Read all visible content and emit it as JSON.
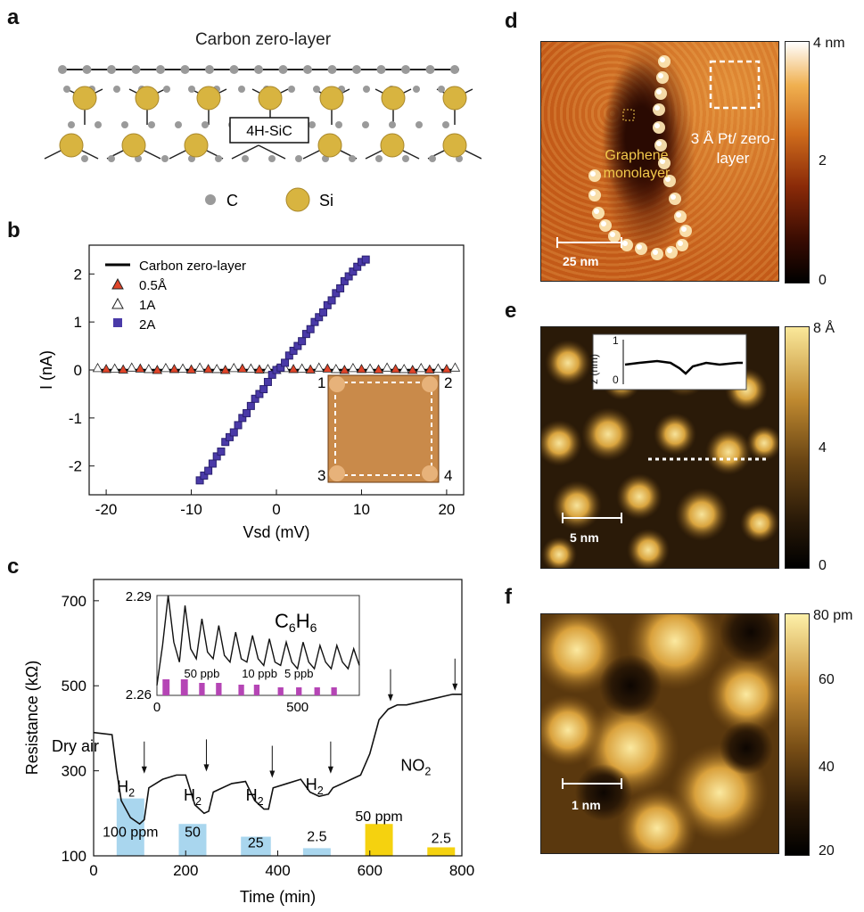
{
  "panels": {
    "a": {
      "letter": "a",
      "title": "Carbon zero-layer",
      "substrate": "4H-SiC",
      "legend": [
        "C",
        "Si"
      ]
    },
    "b": {
      "letter": "b"
    },
    "c": {
      "letter": "c"
    },
    "d": {
      "letter": "d",
      "label_graphene": "Graphene monolayer",
      "label_pt": "3 Å Pt/ zero-layer",
      "scalebar": "25 nm",
      "colorbar_ticks": [
        "4 nm",
        "2",
        "0"
      ]
    },
    "e": {
      "letter": "e",
      "scalebar": "5 nm",
      "colorbar_ticks": [
        "8 Å",
        "4",
        "0"
      ],
      "inset_ylabel": "z (nm)",
      "inset_yticks": [
        "1",
        "0"
      ]
    },
    "f": {
      "letter": "f",
      "scalebar": "1 nm",
      "colorbar_ticks": [
        "80 pm",
        "60",
        "40",
        "20"
      ]
    }
  },
  "chart_data": [
    {
      "panel": "b",
      "type": "scatter",
      "xlabel": "Vsd (mV)",
      "ylabel": "I (nA)",
      "xlim": [
        -22,
        22
      ],
      "ylim": [
        -2.6,
        2.6
      ],
      "xticks": [
        "-20",
        "-10",
        "0",
        "10",
        "20"
      ],
      "yticks": [
        "2",
        "1",
        "0",
        "-1",
        "-2"
      ],
      "legend_position": "top-left",
      "series": [
        {
          "name": "Carbon zero-layer",
          "marker": "line",
          "color": "#000000",
          "x": [
            -21,
            21
          ],
          "y": [
            0,
            0
          ]
        },
        {
          "name": "0.5Å",
          "marker": "triangle",
          "color": "#e0452a",
          "x": [
            -20,
            -18,
            -16,
            -14,
            -12,
            -10,
            -8,
            -6,
            -4,
            -2,
            0,
            2,
            4,
            6,
            8,
            10,
            12,
            14,
            16,
            18,
            20
          ],
          "y": [
            0.02,
            0.01,
            0.03,
            0.0,
            0.02,
            0.01,
            0.02,
            0.0,
            0.03,
            0.01,
            0.0,
            0.02,
            0.01,
            0.03,
            0.0,
            0.02,
            0.01,
            0.02,
            0.0,
            0.01,
            0.02
          ]
        },
        {
          "name": "1A",
          "marker": "open-triangle",
          "color": "#ffffff",
          "x": [
            -21,
            -19,
            -17,
            -15,
            -13,
            -11,
            -9,
            -7,
            -5,
            -3,
            -1,
            1,
            3,
            5,
            7,
            9,
            11,
            13,
            15,
            17,
            19,
            21
          ],
          "y": [
            0.04,
            0.03,
            0.05,
            0.02,
            0.04,
            0.03,
            0.05,
            0.02,
            0.04,
            0.03,
            0.02,
            0.04,
            0.03,
            0.05,
            0.02,
            0.04,
            0.03,
            0.05,
            0.02,
            0.04,
            0.03,
            0.05
          ]
        },
        {
          "name": "2A",
          "marker": "square",
          "color": "#4a3aa8",
          "x": [
            -9,
            -8.5,
            -8,
            -7.5,
            -7,
            -6.5,
            -6,
            -5.5,
            -5,
            -4.5,
            -4,
            -3.5,
            -3,
            -2.5,
            -2,
            -1.5,
            -1,
            -0.5,
            0,
            0.5,
            1,
            1.5,
            2,
            2.5,
            3,
            3.5,
            4,
            4.5,
            5,
            5.5,
            6,
            6.5,
            7,
            7.5,
            8,
            8.5,
            9,
            9.5,
            10,
            10.5
          ],
          "y": [
            -2.3,
            -2.2,
            -2.1,
            -1.95,
            -1.8,
            -1.7,
            -1.5,
            -1.4,
            -1.3,
            -1.15,
            -1.0,
            -0.9,
            -0.75,
            -0.6,
            -0.5,
            -0.4,
            -0.25,
            -0.1,
            0.0,
            0.05,
            0.15,
            0.3,
            0.4,
            0.5,
            0.6,
            0.75,
            0.85,
            1.0,
            1.1,
            1.2,
            1.35,
            1.45,
            1.6,
            1.7,
            1.85,
            1.95,
            2.05,
            2.15,
            2.25,
            2.3
          ]
        }
      ],
      "inset_labels": [
        "1",
        "2",
        "3",
        "4"
      ]
    },
    {
      "panel": "c",
      "type": "line",
      "xlabel": "Time (min)",
      "ylabel": "Resistance (kΩ)",
      "xlim": [
        0,
        800
      ],
      "ylim": [
        100,
        750
      ],
      "xticks": [
        "0",
        "200",
        "400",
        "600",
        "800"
      ],
      "yticks": [
        "700",
        "500",
        "300",
        "100"
      ],
      "series": [
        {
          "name": "",
          "x": [
            0,
            40,
            50,
            60,
            80,
            100,
            110,
            120,
            150,
            180,
            200,
            220,
            240,
            250,
            260,
            300,
            330,
            350,
            370,
            380,
            390,
            420,
            450,
            470,
            490,
            510,
            520,
            540,
            560,
            580,
            600,
            620,
            640,
            660,
            680,
            700,
            720,
            740,
            760,
            780,
            800
          ],
          "y": [
            390,
            385,
            300,
            230,
            190,
            175,
            185,
            260,
            280,
            290,
            290,
            220,
            200,
            205,
            250,
            270,
            275,
            230,
            210,
            210,
            260,
            270,
            280,
            250,
            240,
            245,
            260,
            270,
            280,
            290,
            340,
            420,
            445,
            455,
            455,
            460,
            465,
            470,
            475,
            480,
            480
          ]
        }
      ],
      "annotations": [
        "Dry air",
        "H2",
        "H2",
        "H2",
        "H2",
        "NO2",
        "100 ppm",
        "50",
        "25",
        "2.5",
        "50 ppm",
        "2.5"
      ],
      "bars": [
        {
          "start": 50,
          "end": 110,
          "value": 235,
          "color": "#a9d6ee",
          "label": "100 ppm"
        },
        {
          "start": 185,
          "end": 245,
          "value": 175,
          "color": "#a9d6ee",
          "label": "50"
        },
        {
          "start": 320,
          "end": 385,
          "value": 145,
          "color": "#a9d6ee",
          "label": "25"
        },
        {
          "start": 455,
          "end": 515,
          "value": 118,
          "color": "#a9d6ee",
          "label": "2.5"
        },
        {
          "start": 590,
          "end": 650,
          "value": 175,
          "color": "#f5d20f",
          "label": "50 ppm"
        },
        {
          "start": 725,
          "end": 785,
          "value": 120,
          "color": "#f5d20f",
          "label": "2.5"
        }
      ]
    },
    {
      "panel": "c-inset",
      "type": "line",
      "title": "C6H6",
      "xlim": [
        0,
        720
      ],
      "ylim": [
        2.26,
        2.29
      ],
      "xticks": [
        "0",
        "500"
      ],
      "yticks": [
        "2.29",
        "2.26"
      ],
      "bar_labels": [
        "50 ppb",
        "10 ppb",
        "5 ppb"
      ],
      "series": [
        {
          "name": "",
          "x": [
            0,
            20,
            40,
            60,
            80,
            100,
            120,
            140,
            160,
            180,
            200,
            220,
            240,
            260,
            280,
            300,
            320,
            340,
            360,
            380,
            400,
            420,
            440,
            460,
            480,
            500,
            520,
            540,
            560,
            580,
            600,
            620,
            640,
            660,
            680,
            700,
            720
          ],
          "y": [
            2.263,
            2.275,
            2.29,
            2.276,
            2.27,
            2.287,
            2.274,
            2.271,
            2.283,
            2.273,
            2.271,
            2.281,
            2.272,
            2.27,
            2.279,
            2.271,
            2.27,
            2.278,
            2.271,
            2.269,
            2.277,
            2.27,
            2.269,
            2.276,
            2.27,
            2.268,
            2.276,
            2.27,
            2.268,
            2.275,
            2.27,
            2.268,
            2.275,
            2.27,
            2.268,
            2.274,
            2.269
          ]
        }
      ]
    }
  ]
}
